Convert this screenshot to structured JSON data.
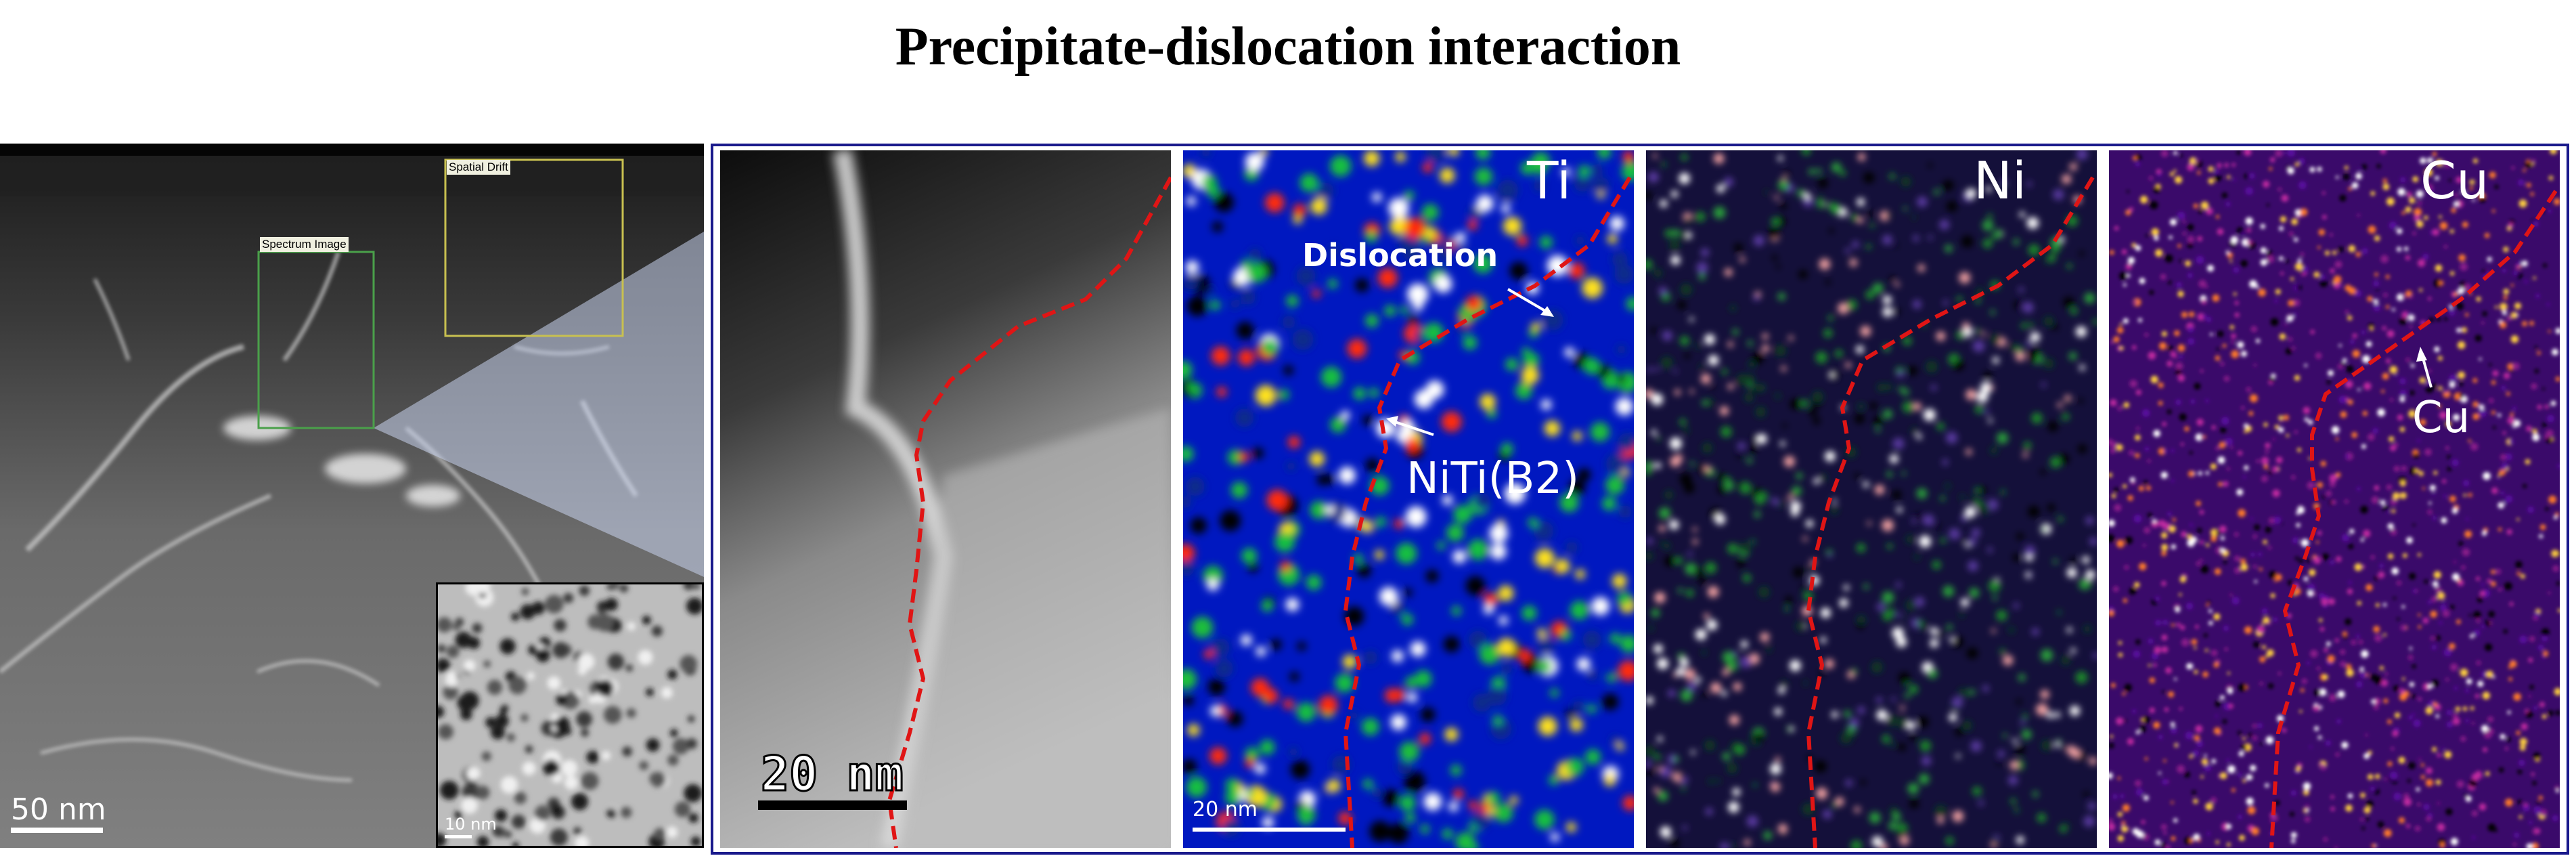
{
  "title": "Precipitate-dislocation interaction",
  "overview": {
    "scale_label": "50 nm",
    "spectrum_box_label": "Spectrum Image",
    "drift_box_label": "Spatial Drift",
    "inset_scale_label": "10 nm"
  },
  "haadf": {
    "scale_label": "20 nm"
  },
  "maps": [
    {
      "element": "Ti",
      "annotations": [
        "Dislocation",
        "NiTi(B2)"
      ],
      "scale_label": "20 nm"
    },
    {
      "element": "Ni"
    },
    {
      "element": "Cu",
      "annotations": [
        "Cu"
      ]
    }
  ],
  "colors": {
    "frame": "#1a1a8c",
    "dislocation_line": "#e01515",
    "overview_box": "#c8c050",
    "spectrum_box": "#4aa04a"
  }
}
